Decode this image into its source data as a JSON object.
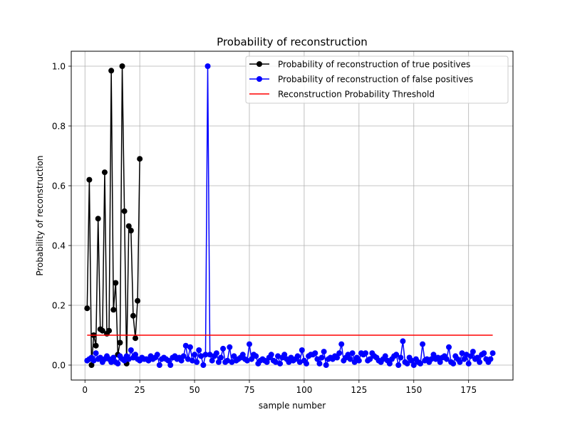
{
  "chart_data": {
    "type": "line",
    "title": "Probability of reconstruction",
    "xlabel": "sample number",
    "ylabel": "Probability of reconstruction",
    "xlim": [
      -6.25,
      195.25
    ],
    "ylim": [
      -0.05,
      1.05
    ],
    "xticks": [
      0,
      25,
      50,
      75,
      100,
      125,
      150,
      175
    ],
    "yticks": [
      0.0,
      0.2,
      0.4,
      0.6,
      0.8,
      1.0
    ],
    "xtick_labels": [
      "0",
      "25",
      "50",
      "75",
      "100",
      "125",
      "150",
      "175"
    ],
    "ytick_labels": [
      "0.0",
      "0.2",
      "0.4",
      "0.6",
      "0.8",
      "1.0"
    ],
    "grid": true,
    "legend_position": "top-right",
    "series": [
      {
        "name": "Probability of reconstruction of true positives",
        "color": "#000000",
        "marker": "circle",
        "x": [
          1,
          2,
          3,
          4,
          5,
          6,
          7,
          8,
          9,
          10,
          11,
          12,
          13,
          14,
          15,
          16,
          17,
          18,
          19,
          20,
          21,
          22,
          23,
          24,
          25
        ],
        "y": [
          0.19,
          0.62,
          0.0,
          0.1,
          0.065,
          0.49,
          0.12,
          0.115,
          0.645,
          0.105,
          0.115,
          0.985,
          0.185,
          0.275,
          0.035,
          0.075,
          1.0,
          0.515,
          0.005,
          0.465,
          0.45,
          0.165,
          0.09,
          0.215,
          0.69
        ]
      },
      {
        "name": "Probability of reconstruction of false positives",
        "color": "#0000ff",
        "marker": "circle",
        "x": [
          1,
          2,
          3,
          4,
          5,
          6,
          7,
          8,
          9,
          10,
          11,
          12,
          13,
          14,
          15,
          16,
          17,
          18,
          19,
          20,
          21,
          22,
          23,
          24,
          25,
          26,
          27,
          28,
          29,
          30,
          31,
          32,
          33,
          34,
          35,
          36,
          37,
          38,
          39,
          40,
          41,
          42,
          43,
          44,
          45,
          46,
          47,
          48,
          49,
          50,
          51,
          52,
          53,
          54,
          55,
          56,
          57,
          58,
          59,
          60,
          61,
          62,
          63,
          64,
          65,
          66,
          67,
          68,
          69,
          70,
          71,
          72,
          73,
          74,
          75,
          76,
          77,
          78,
          79,
          80,
          81,
          82,
          83,
          84,
          85,
          86,
          87,
          88,
          89,
          90,
          91,
          92,
          93,
          94,
          95,
          96,
          97,
          98,
          99,
          100,
          101,
          102,
          103,
          104,
          105,
          106,
          107,
          108,
          109,
          110,
          111,
          112,
          113,
          114,
          115,
          116,
          117,
          118,
          119,
          120,
          121,
          122,
          123,
          124,
          125,
          126,
          127,
          128,
          129,
          130,
          131,
          132,
          133,
          134,
          135,
          136,
          137,
          138,
          139,
          140,
          141,
          142,
          143,
          144,
          145,
          146,
          147,
          148,
          149,
          150,
          151,
          152,
          153,
          154,
          155,
          156,
          157,
          158,
          159,
          160,
          161,
          162,
          163,
          164,
          165,
          166,
          167,
          168,
          169,
          170,
          171,
          172,
          173,
          174,
          175,
          176,
          177,
          178,
          179,
          180,
          181,
          182,
          183,
          184,
          185,
          186
        ],
        "y": [
          0.015,
          0.02,
          0.025,
          0.015,
          0.04,
          0.02,
          0.025,
          0.01,
          0.02,
          0.03,
          0.02,
          0.01,
          0.025,
          0.01,
          0.005,
          0.03,
          0.02,
          0.015,
          0.03,
          0.02,
          0.05,
          0.025,
          0.035,
          0.02,
          0.015,
          0.025,
          0.02,
          0.02,
          0.015,
          0.03,
          0.02,
          0.025,
          0.035,
          0.0,
          0.02,
          0.025,
          0.02,
          0.015,
          0.0,
          0.025,
          0.03,
          0.02,
          0.025,
          0.015,
          0.03,
          0.065,
          0.02,
          0.06,
          0.015,
          0.035,
          0.01,
          0.05,
          0.03,
          0.0,
          0.035,
          1.0,
          0.035,
          0.015,
          0.03,
          0.04,
          0.01,
          0.025,
          0.055,
          0.01,
          0.015,
          0.06,
          0.01,
          0.03,
          0.015,
          0.02,
          0.025,
          0.035,
          0.02,
          0.015,
          0.07,
          0.02,
          0.035,
          0.03,
          0.005,
          0.015,
          0.02,
          0.015,
          0.01,
          0.025,
          0.035,
          0.015,
          0.01,
          0.03,
          0.005,
          0.025,
          0.035,
          0.02,
          0.01,
          0.025,
          0.015,
          0.02,
          0.03,
          0.01,
          0.05,
          0.015,
          0.005,
          0.03,
          0.035,
          0.035,
          0.04,
          0.02,
          0.005,
          0.025,
          0.045,
          0.0,
          0.02,
          0.025,
          0.02,
          0.03,
          0.025,
          0.04,
          0.07,
          0.015,
          0.025,
          0.035,
          0.02,
          0.04,
          0.01,
          0.025,
          0.015,
          0.04,
          0.035,
          0.04,
          0.015,
          0.02,
          0.04,
          0.03,
          0.025,
          0.015,
          0.01,
          0.02,
          0.03,
          0.015,
          0.005,
          0.02,
          0.03,
          0.035,
          0.0,
          0.025,
          0.08,
          0.01,
          0.005,
          0.025,
          0.015,
          0.0,
          0.02,
          0.01,
          0.005,
          0.07,
          0.015,
          0.02,
          0.01,
          0.02,
          0.035,
          0.02,
          0.025,
          0.01,
          0.025,
          0.03,
          0.02,
          0.06,
          0.01,
          0.005,
          0.03,
          0.02,
          0.01,
          0.04,
          0.02,
          0.035,
          0.005,
          0.03,
          0.045,
          0.02,
          0.025,
          0.01,
          0.035,
          0.04,
          0.02,
          0.01,
          0.02,
          0.04
        ]
      },
      {
        "name": "Reconstruction Probability Threshold",
        "color": "#ff0000",
        "marker": "none",
        "x": [
          1,
          186
        ],
        "y": [
          0.1,
          0.1
        ]
      }
    ]
  }
}
